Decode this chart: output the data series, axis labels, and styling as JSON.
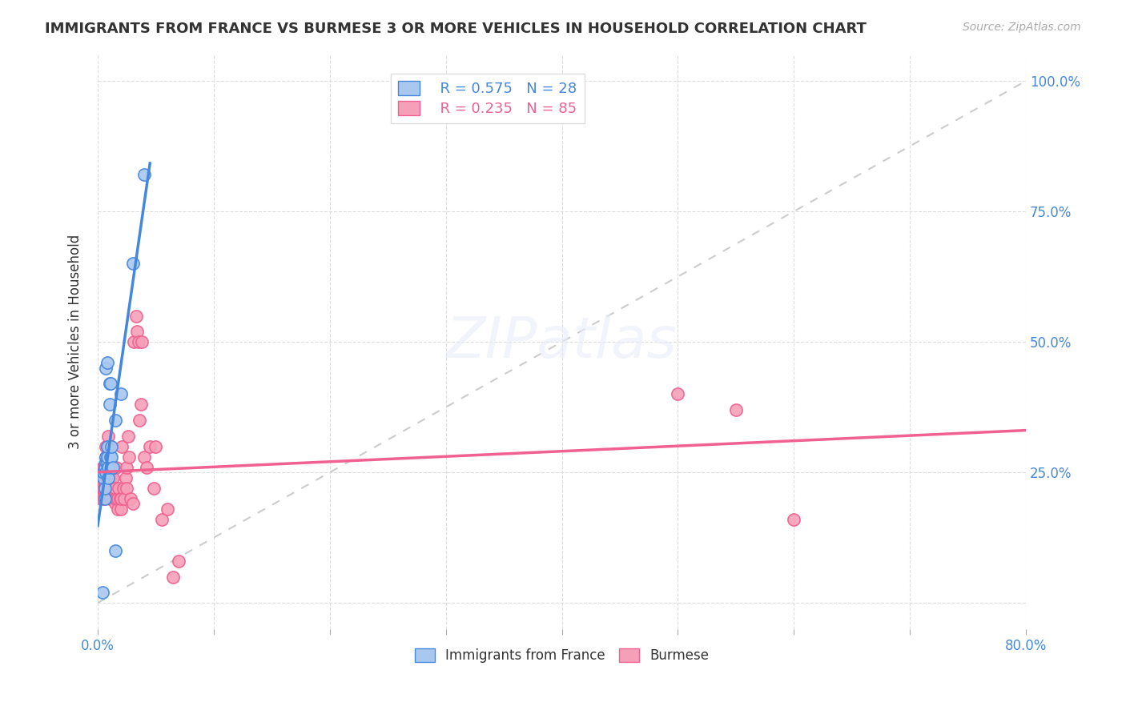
{
  "title": "IMMIGRANTS FROM FRANCE VS BURMESE 3 OR MORE VEHICLES IN HOUSEHOLD CORRELATION CHART",
  "source": "Source: ZipAtlas.com",
  "ylabel": "3 or more Vehicles in Household",
  "ytick_values": [
    0,
    0.25,
    0.5,
    0.75,
    1.0
  ],
  "ytick_labels": [
    "",
    "25.0%",
    "50.0%",
    "75.0%",
    "100.0%"
  ],
  "xlim": [
    0,
    0.8
  ],
  "ylim": [
    -0.05,
    1.05
  ],
  "legend_france_R": "0.575",
  "legend_france_N": "28",
  "legend_burmese_R": "0.235",
  "legend_burmese_N": "85",
  "france_color": "#a8c8f0",
  "burmese_color": "#f5a0b8",
  "france_line_color": "#4488dd",
  "burmese_line_color": "#f06090",
  "diagonal_color": "#cccccc",
  "watermark": "ZIPatlas",
  "background_color": "#ffffff",
  "france_scatter_x": [
    0.004,
    0.005,
    0.005,
    0.006,
    0.006,
    0.006,
    0.007,
    0.007,
    0.007,
    0.007,
    0.008,
    0.008,
    0.008,
    0.008,
    0.009,
    0.009,
    0.01,
    0.01,
    0.011,
    0.011,
    0.012,
    0.012,
    0.013,
    0.015,
    0.015,
    0.02,
    0.03,
    0.04
  ],
  "france_scatter_y": [
    0.02,
    0.24,
    0.25,
    0.2,
    0.22,
    0.26,
    0.25,
    0.27,
    0.28,
    0.45,
    0.27,
    0.28,
    0.3,
    0.46,
    0.24,
    0.26,
    0.38,
    0.42,
    0.28,
    0.42,
    0.28,
    0.3,
    0.26,
    0.1,
    0.35,
    0.4,
    0.65,
    0.82
  ],
  "burmese_scatter_x": [
    0.002,
    0.003,
    0.003,
    0.004,
    0.004,
    0.004,
    0.005,
    0.005,
    0.005,
    0.005,
    0.005,
    0.006,
    0.006,
    0.006,
    0.006,
    0.007,
    0.007,
    0.007,
    0.007,
    0.007,
    0.007,
    0.008,
    0.008,
    0.008,
    0.008,
    0.009,
    0.009,
    0.009,
    0.009,
    0.009,
    0.01,
    0.01,
    0.01,
    0.01,
    0.011,
    0.011,
    0.011,
    0.011,
    0.012,
    0.012,
    0.012,
    0.013,
    0.013,
    0.014,
    0.014,
    0.015,
    0.015,
    0.015,
    0.016,
    0.016,
    0.017,
    0.017,
    0.018,
    0.019,
    0.02,
    0.02,
    0.021,
    0.022,
    0.023,
    0.024,
    0.025,
    0.025,
    0.026,
    0.027,
    0.028,
    0.03,
    0.031,
    0.033,
    0.034,
    0.035,
    0.036,
    0.037,
    0.038,
    0.04,
    0.042,
    0.045,
    0.048,
    0.05,
    0.055,
    0.06,
    0.065,
    0.07,
    0.5,
    0.55,
    0.6
  ],
  "burmese_scatter_y": [
    0.22,
    0.2,
    0.24,
    0.22,
    0.25,
    0.26,
    0.2,
    0.22,
    0.23,
    0.25,
    0.26,
    0.22,
    0.23,
    0.24,
    0.26,
    0.22,
    0.24,
    0.25,
    0.26,
    0.28,
    0.3,
    0.22,
    0.23,
    0.25,
    0.3,
    0.21,
    0.22,
    0.24,
    0.26,
    0.32,
    0.2,
    0.22,
    0.25,
    0.28,
    0.22,
    0.24,
    0.26,
    0.3,
    0.2,
    0.22,
    0.26,
    0.2,
    0.24,
    0.22,
    0.26,
    0.19,
    0.2,
    0.22,
    0.2,
    0.26,
    0.18,
    0.2,
    0.22,
    0.2,
    0.18,
    0.2,
    0.3,
    0.22,
    0.2,
    0.24,
    0.22,
    0.26,
    0.32,
    0.28,
    0.2,
    0.19,
    0.5,
    0.55,
    0.52,
    0.5,
    0.35,
    0.38,
    0.5,
    0.28,
    0.26,
    0.3,
    0.22,
    0.3,
    0.16,
    0.18,
    0.05,
    0.08,
    0.4,
    0.37,
    0.16
  ]
}
